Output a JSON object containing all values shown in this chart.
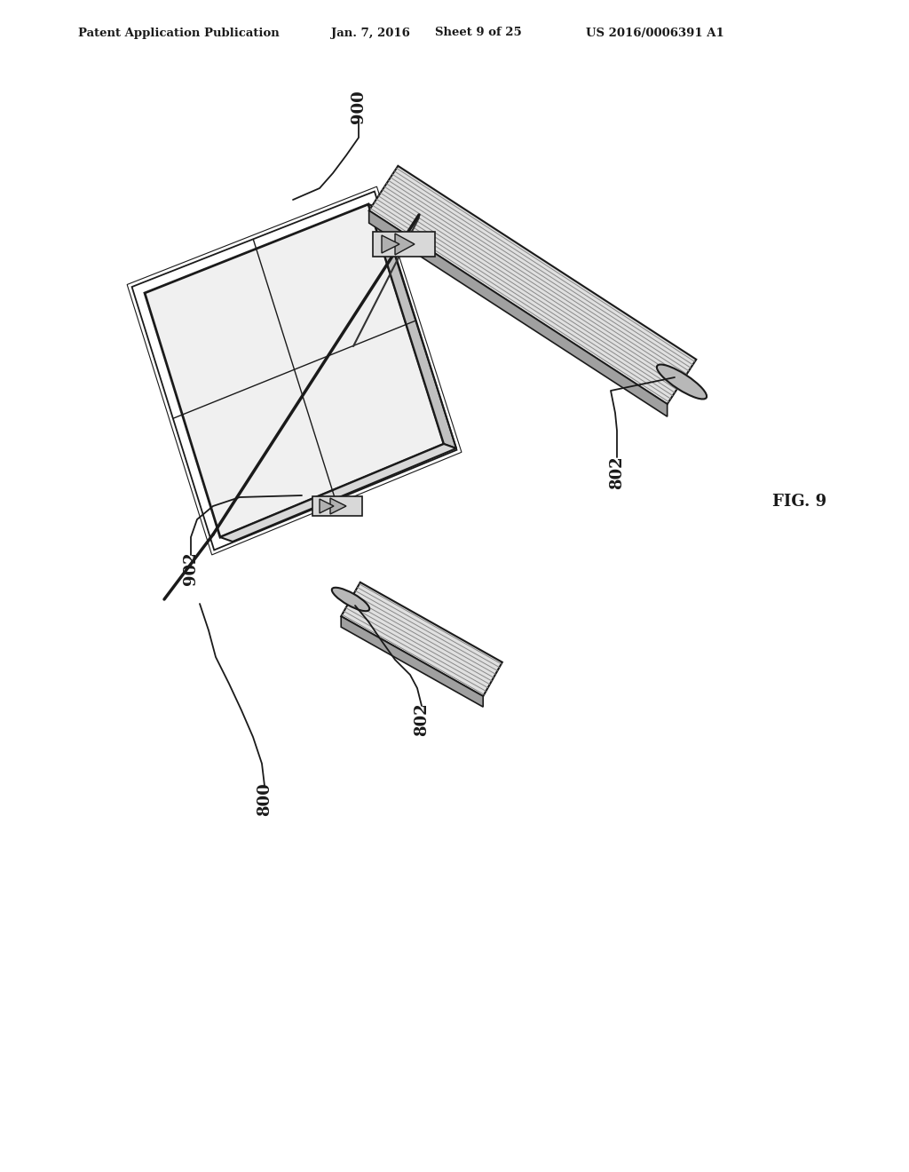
{
  "background_color": "#ffffff",
  "header_text": "Patent Application Publication",
  "header_date": "Jan. 7, 2016",
  "header_sheet": "Sheet 9 of 25",
  "header_patent": "US 2016/0006391 A1",
  "fig_label": "FIG. 9",
  "label_900": "900",
  "label_902": "902",
  "label_802_upper": "802",
  "label_802_lower": "802",
  "label_800": "800",
  "line_color": "#1a1a1a",
  "light_fill": "#e8e8e8",
  "med_fill": "#c0c0c0",
  "dark_fill": "#707070",
  "hatch_color": "#444444"
}
